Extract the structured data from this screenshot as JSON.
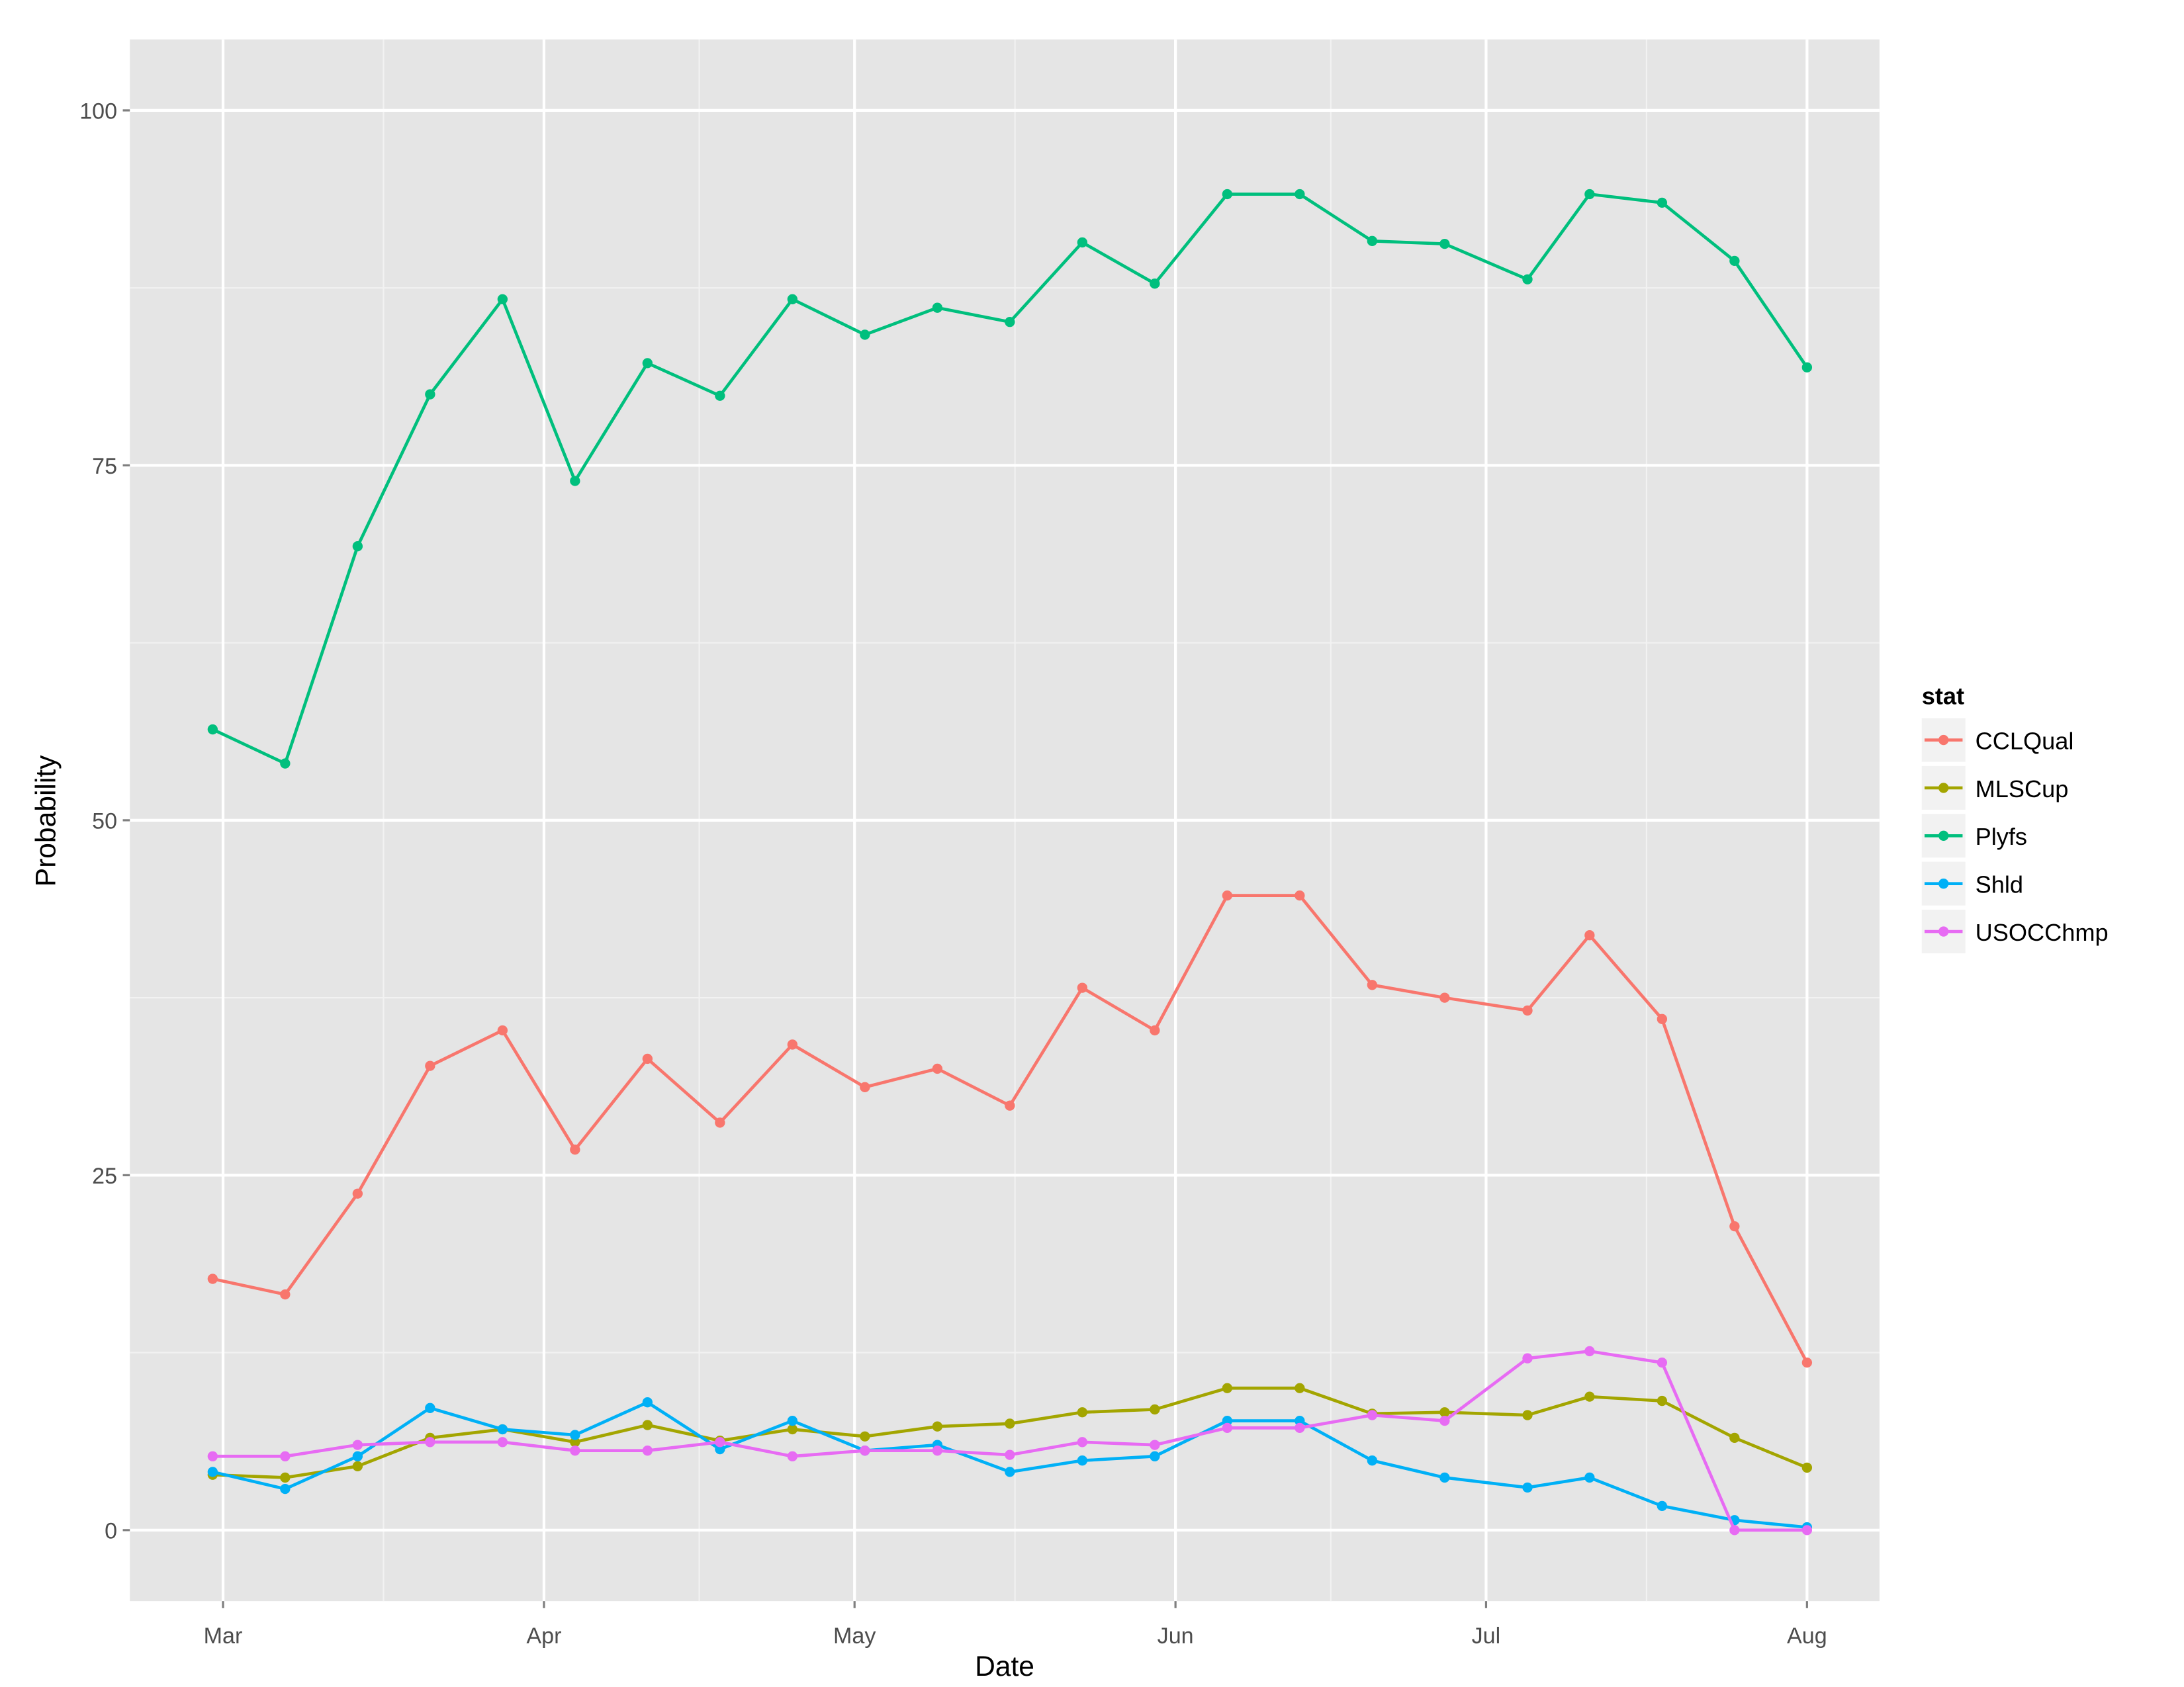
{
  "chart_data": {
    "type": "line",
    "title": "",
    "xlabel": "Date",
    "ylabel": "Probability",
    "x_tick_labels": [
      "Mar",
      "Apr",
      "May",
      "Jun",
      "Jul",
      "Aug"
    ],
    "x_tick_dates": [
      "03-01",
      "04-01",
      "05-01",
      "06-01",
      "07-01",
      "08-01"
    ],
    "y_ticks": [
      0,
      25,
      50,
      75,
      100
    ],
    "y_tick_labels": [
      "0",
      "25",
      "50",
      "75",
      "100"
    ],
    "xlim": [
      "02-20",
      "08-08"
    ],
    "ylim": [
      -5,
      105
    ],
    "grid": true,
    "legend_title": "stat",
    "legend_position": "right",
    "x": [
      "02-28",
      "03-07",
      "03-14",
      "03-21",
      "03-28",
      "04-04",
      "04-11",
      "04-18",
      "04-25",
      "05-02",
      "05-09",
      "05-16",
      "05-23",
      "05-30",
      "06-06",
      "06-13",
      "06-20",
      "06-27",
      "07-05",
      "07-11",
      "07-18",
      "07-25",
      "08-01"
    ],
    "series": [
      {
        "name": "CCLQual",
        "color": "#F8766D",
        "values": [
          17.7,
          16.6,
          23.7,
          32.7,
          35.2,
          26.8,
          33.2,
          28.7,
          34.2,
          31.2,
          32.5,
          29.9,
          38.2,
          35.2,
          44.7,
          44.7,
          38.4,
          37.5,
          36.6,
          41.9,
          36.0,
          21.4,
          11.8
        ]
      },
      {
        "name": "MLSCup",
        "color": "#A3A500",
        "values": [
          3.9,
          3.7,
          4.5,
          6.5,
          7.1,
          6.2,
          7.4,
          6.3,
          7.1,
          6.6,
          7.3,
          7.5,
          8.3,
          8.5,
          10.0,
          10.0,
          8.2,
          8.3,
          8.1,
          9.4,
          9.1,
          6.5,
          4.4
        ]
      },
      {
        "name": "Plyfs",
        "color": "#00BF7D",
        "values": [
          56.4,
          54.0,
          69.3,
          80.0,
          86.7,
          73.9,
          82.2,
          79.9,
          86.7,
          84.2,
          86.1,
          85.1,
          90.7,
          87.8,
          94.1,
          94.1,
          90.8,
          90.6,
          88.1,
          94.1,
          93.5,
          89.4,
          81.9
        ]
      },
      {
        "name": "Shld",
        "color": "#00B0F6",
        "values": [
          4.1,
          2.9,
          5.2,
          8.6,
          7.1,
          6.7,
          9.0,
          5.7,
          7.7,
          5.6,
          6.0,
          4.1,
          4.9,
          5.2,
          7.7,
          7.7,
          4.9,
          3.7,
          3.0,
          3.7,
          1.7,
          0.7,
          0.2
        ]
      },
      {
        "name": "USOCChmp",
        "color": "#E76BF3",
        "values": [
          5.2,
          5.2,
          6.0,
          6.2,
          6.2,
          5.6,
          5.6,
          6.2,
          5.2,
          5.6,
          5.6,
          5.3,
          6.2,
          6.0,
          7.2,
          7.2,
          8.1,
          7.7,
          12.1,
          12.6,
          11.8,
          0.0,
          0.0
        ]
      }
    ],
    "colors": {
      "panel_background": "#E5E5E5",
      "grid_major": "#FFFFFF",
      "grid_minor": "#F2F2F2"
    }
  }
}
